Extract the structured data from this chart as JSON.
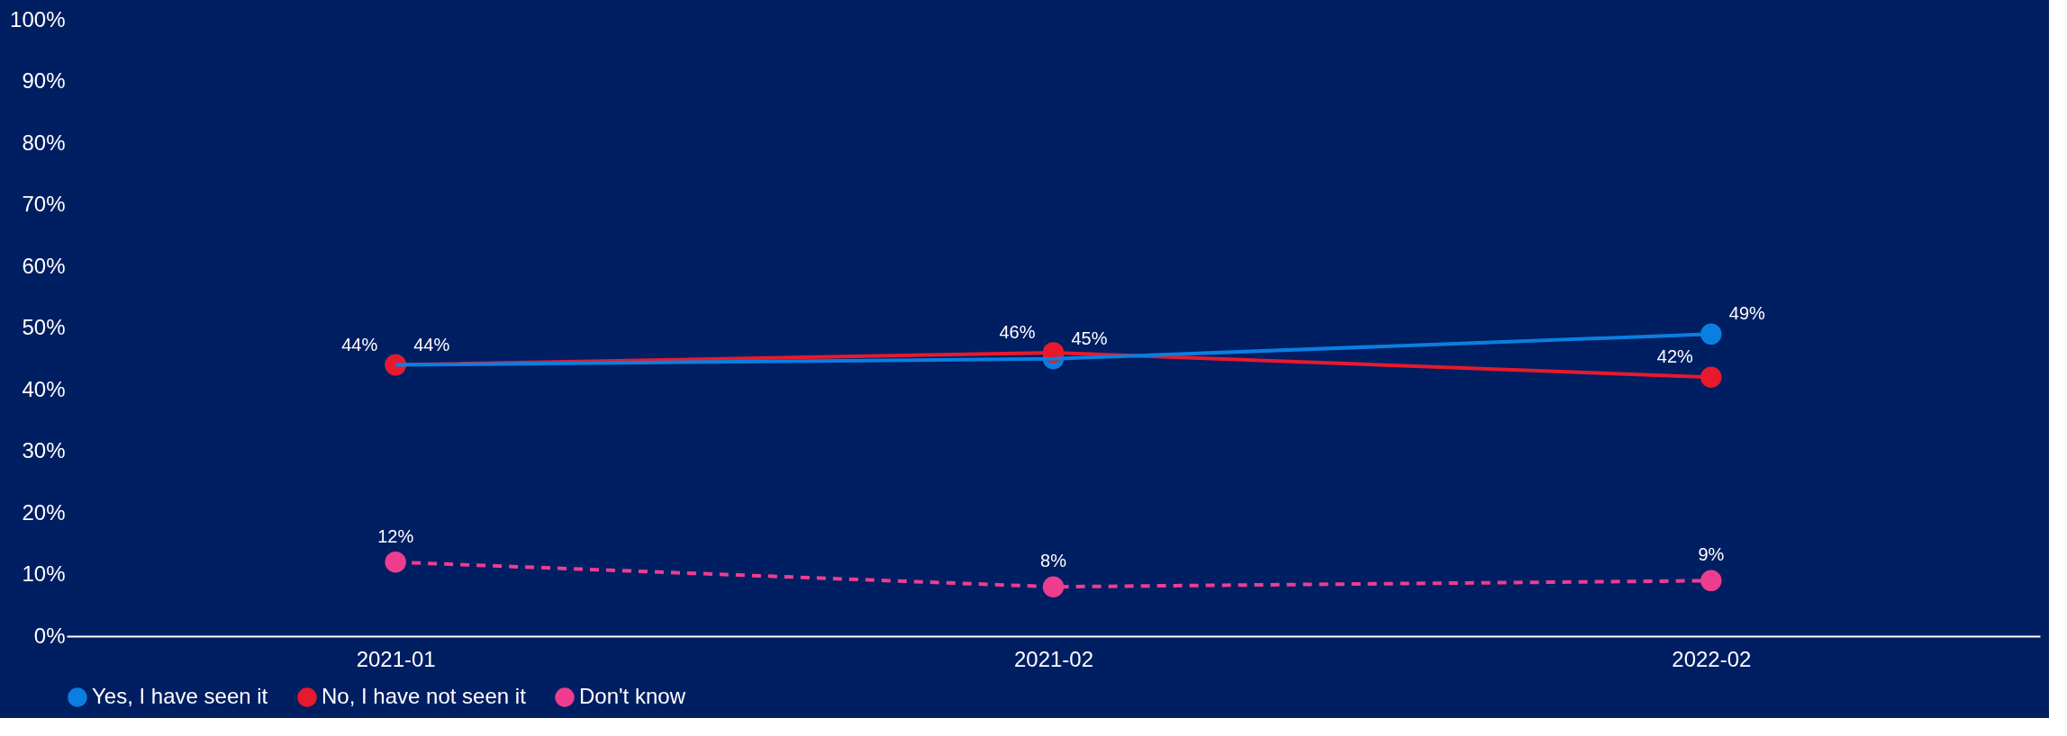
{
  "chart_data": {
    "type": "line",
    "categories": [
      "2021-01",
      "2021-02",
      "2022-02"
    ],
    "ylim": [
      0,
      100
    ],
    "yticks": [
      {
        "value": 0,
        "label": "0%"
      },
      {
        "value": 10,
        "label": "10%"
      },
      {
        "value": 20,
        "label": "20%"
      },
      {
        "value": 30,
        "label": "30%"
      },
      {
        "value": 40,
        "label": "40%"
      },
      {
        "value": 50,
        "label": "50%"
      },
      {
        "value": 60,
        "label": "60%"
      },
      {
        "value": 70,
        "label": "70%"
      },
      {
        "value": 80,
        "label": "80%"
      },
      {
        "value": 90,
        "label": "90%"
      },
      {
        "value": 100,
        "label": "100%"
      }
    ],
    "series": [
      {
        "name": "Yes, I have seen it",
        "color": "#0a7fe0",
        "values": [
          44,
          45,
          49
        ],
        "value_labels": [
          "44%",
          "45%",
          "49%"
        ],
        "line_style": "solid"
      },
      {
        "name": "No, I have not seen it",
        "color": "#e8192c",
        "values": [
          44,
          46,
          42
        ],
        "value_labels": [
          "44%",
          "46%",
          "42%"
        ],
        "line_style": "solid"
      },
      {
        "name": "Don't know",
        "color": "#ee3d8f",
        "values": [
          12,
          8,
          9
        ],
        "value_labels": [
          "12%",
          "8%",
          "9%"
        ],
        "line_style": "dashed"
      }
    ],
    "marker": "circle",
    "grid": false,
    "legend": "bottom"
  }
}
